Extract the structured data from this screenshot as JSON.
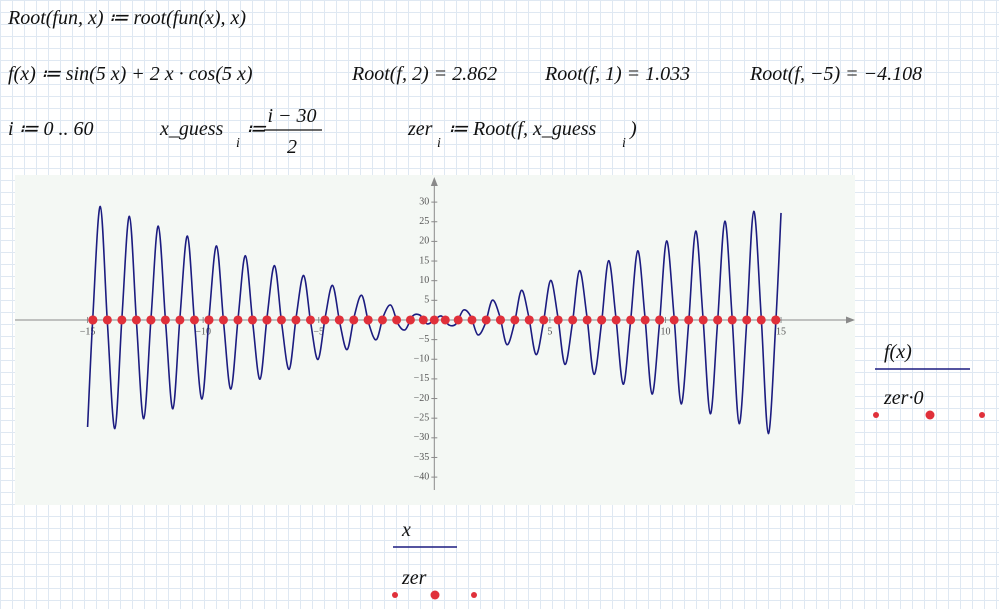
{
  "worksheet": {
    "line1": "Root(fun, x) ≔ root(fun(x), x)",
    "line2": [
      "f(x) ≔ sin(5 x) + 2 x · cos(5 x)",
      "Root(f, 2) = 2.862",
      "Root(f, 1) = 1.033",
      "Root(f, −5) = −4.108"
    ],
    "line3": {
      "range": "i ≔ 0 .. 60",
      "guess_name": "x_guess",
      "guess_sub": "i",
      "assign": "≔",
      "numerator": "i − 30",
      "denominator": "2",
      "zer_name": "zer",
      "zer_sub": "i",
      "zer_rhs": "≔ Root(f, x_guess",
      "zer_rhs_sub": "i",
      "zer_close": ")"
    }
  },
  "chart_data": {
    "type": "line",
    "xlim": [
      -18.14,
      18.2
    ],
    "ylim": [
      -47.1,
      36.9
    ],
    "xticks": [
      {
        "value": -15,
        "label": "−15"
      },
      {
        "value": -10,
        "label": "−10"
      },
      {
        "value": -5,
        "label": "−5"
      },
      5,
      10,
      15
    ],
    "yticks": [
      {
        "value": -40,
        "label": "−40"
      },
      {
        "value": -35,
        "label": "−35"
      },
      {
        "value": -30,
        "label": "−30"
      },
      {
        "value": -25,
        "label": "−25"
      },
      {
        "value": -20,
        "label": "−20"
      },
      {
        "value": -15,
        "label": "−15"
      },
      {
        "value": -10,
        "label": "−10"
      },
      {
        "value": -5,
        "label": "−5"
      },
      5,
      10,
      15,
      20,
      25,
      30
    ],
    "series": [
      {
        "name": "f(x)",
        "x_label": "x",
        "color": "#1c1c80",
        "style": "line",
        "x": [
          -15,
          -14.77,
          -14.45,
          -14.14,
          -13.82,
          -13.51,
          -13.19,
          -12.88,
          -12.57,
          -12.25,
          -11.94,
          -11.62,
          -11.31,
          -11.0,
          -10.68,
          -10.37,
          -10.05,
          -9.74,
          -9.42,
          -9.11,
          -8.8,
          -8.48,
          -8.17,
          -7.85,
          -7.54,
          -7.23,
          -6.91,
          -6.6,
          -6.28,
          -5.97,
          -5.65,
          -5.34,
          -5.03,
          -4.71,
          -4.4,
          -4.08,
          -3.77,
          -3.46,
          -3.14,
          -2.83,
          -2.51,
          -2.2,
          -1.88,
          -1.57,
          -1.26,
          -0.94,
          -0.63,
          -0.31,
          0,
          0.31,
          0.63,
          0.94,
          1.26,
          1.57,
          1.88,
          2.2,
          2.51,
          2.83,
          3.14,
          3.46,
          3.77,
          4.08,
          4.4,
          4.71,
          5.03,
          5.34,
          5.65,
          5.97,
          6.28,
          6.6,
          6.91,
          7.23,
          7.54,
          7.85,
          8.17,
          8.48,
          8.8,
          9.11,
          9.42,
          9.74,
          10.05,
          10.37,
          10.68,
          11.0,
          11.31,
          11.62,
          11.94,
          12.25,
          12.57,
          12.88,
          13.19,
          13.51,
          13.82,
          14.14,
          14.45,
          14.77,
          15
        ],
        "values": [
          -27.24,
          1,
          28.9,
          -1,
          -27.65,
          1,
          26.39,
          -1,
          -25.13,
          1,
          23.88,
          -1,
          -22.62,
          1,
          21.36,
          -1,
          -20.11,
          1,
          18.85,
          -1,
          -17.59,
          1,
          16.34,
          -1,
          -15.08,
          1,
          13.82,
          -1,
          -12.57,
          1,
          11.31,
          -1,
          -10.05,
          1,
          8.8,
          -1,
          -7.54,
          1,
          6.28,
          -1,
          -5.03,
          1,
          3.77,
          -1,
          -2.51,
          1,
          1.26,
          -1,
          0,
          1,
          -1.26,
          -1,
          2.51,
          1,
          -3.77,
          -1,
          5.03,
          1,
          -6.28,
          -1,
          7.54,
          1,
          -8.8,
          -1,
          10.05,
          1,
          -11.31,
          -1,
          12.57,
          1,
          -13.82,
          -1,
          15.08,
          1,
          -16.34,
          -1,
          17.59,
          1,
          -18.85,
          -1,
          20.11,
          1,
          -21.36,
          -1,
          22.62,
          1,
          -23.88,
          -1,
          25.13,
          1,
          -26.39,
          -1,
          27.65,
          1,
          -28.9,
          -1,
          27.25
        ]
      },
      {
        "name": "zer·0",
        "x_label": "zer",
        "color": "#e0303a",
        "style": "dots",
        "x": [
          -14.772,
          -14.772,
          -14.144,
          -13.516,
          -12.888,
          -12.26,
          -12.26,
          -11.633,
          -11.005,
          -10.377,
          -9.749,
          -9.749,
          -9.122,
          -8.494,
          -7.867,
          -7.24,
          -7.24,
          -6.612,
          -5.986,
          -5.359,
          -4.108,
          -4.733,
          -4.108,
          -3.484,
          -2.862,
          -2.243,
          -2.862,
          -1.63,
          -1.033,
          -0.476,
          0,
          0.476,
          1.033,
          1.63,
          2.862,
          2.243,
          2.862,
          3.484,
          4.108,
          4.733,
          4.108,
          5.359,
          5.986,
          6.612,
          7.24,
          7.24,
          7.867,
          8.494,
          9.122,
          9.749,
          9.749,
          10.377,
          11.005,
          11.633,
          12.26,
          12.26,
          12.888,
          13.516,
          14.144,
          14.772,
          14.772
        ],
        "values": [
          0,
          0,
          0,
          0,
          0,
          0,
          0,
          0,
          0,
          0,
          0,
          0,
          0,
          0,
          0,
          0,
          0,
          0,
          0,
          0,
          0,
          0,
          0,
          0,
          0,
          0,
          0,
          0,
          0,
          0,
          0,
          0,
          0,
          0,
          0,
          0,
          0,
          0,
          0,
          0,
          0,
          0,
          0,
          0,
          0,
          0,
          0,
          0,
          0,
          0,
          0,
          0,
          0,
          0,
          0,
          0,
          0,
          0,
          0,
          0,
          0
        ]
      }
    ]
  }
}
